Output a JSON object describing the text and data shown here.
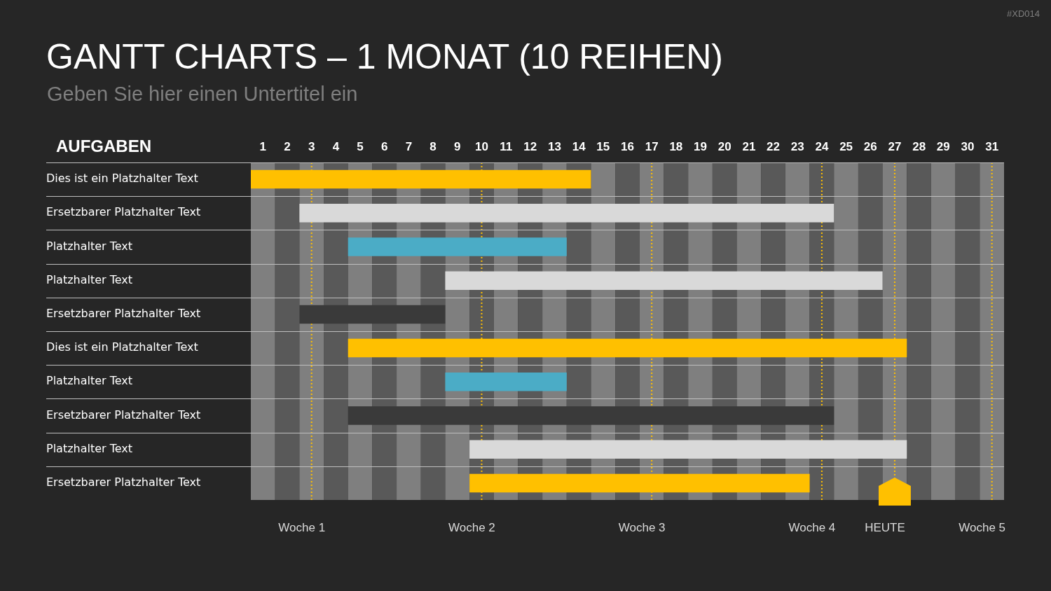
{
  "chart_data": {
    "type": "bar",
    "orientation": "horizontal",
    "title": "GANTT CHARTS – 1 MONAT (10 REIHEN)",
    "subtitle": "Geben Sie hier einen Untertitel ein",
    "ylabel": "AUFGABEN",
    "categories": [
      "Dies ist ein Platzhalter Text",
      "Ersetzbarer Platzhalter Text",
      "Platzhalter Text",
      "Platzhalter Text",
      "Ersetzbarer Platzhalter Text",
      "Dies ist ein Platzhalter Text",
      "Platzhalter Text",
      "Ersetzbarer Platzhalter Text",
      "Platzhalter Text",
      "Ersetzbarer Platzhalter Text"
    ],
    "base": [
      0.5,
      2.5,
      4.5,
      8.5,
      2.5,
      4.5,
      8.5,
      4.5,
      9.5,
      9.5
    ],
    "values": [
      14,
      22,
      9,
      18,
      6,
      23,
      5,
      20,
      18,
      14
    ],
    "colors": [
      "#ffc000",
      "#d9d9d9",
      "#4bacc6",
      "#d9d9d9",
      "#3a3a3a",
      "#ffc000",
      "#4bacc6",
      "#3a3a3a",
      "#d9d9d9",
      "#ffc000"
    ],
    "xlim": [
      0.5,
      31.5
    ],
    "xticks": [
      1,
      2,
      3,
      4,
      5,
      6,
      7,
      8,
      9,
      10,
      11,
      12,
      13,
      14,
      15,
      16,
      17,
      18,
      19,
      20,
      21,
      22,
      23,
      24,
      25,
      26,
      27,
      28,
      29,
      30,
      31
    ],
    "grid": "y",
    "bands": [
      {
        "axis": "x",
        "from": 0.5,
        "to": 1.5,
        "color": "#7f7f7f"
      },
      {
        "axis": "x",
        "from": 1.5,
        "to": 2.5,
        "color": "#595959"
      },
      {
        "axis": "x",
        "from": 2.5,
        "to": 3.5,
        "color": "#7f7f7f"
      },
      {
        "axis": "x",
        "from": 3.5,
        "to": 4.5,
        "color": "#595959"
      },
      {
        "axis": "x",
        "from": 4.5,
        "to": 5.5,
        "color": "#7f7f7f"
      },
      {
        "axis": "x",
        "from": 5.5,
        "to": 6.5,
        "color": "#595959"
      },
      {
        "axis": "x",
        "from": 6.5,
        "to": 7.5,
        "color": "#7f7f7f"
      },
      {
        "axis": "x",
        "from": 7.5,
        "to": 8.5,
        "color": "#595959"
      },
      {
        "axis": "x",
        "from": 8.5,
        "to": 9.5,
        "color": "#7f7f7f"
      },
      {
        "axis": "x",
        "from": 9.5,
        "to": 10.5,
        "color": "#595959"
      },
      {
        "axis": "x",
        "from": 10.5,
        "to": 11.5,
        "color": "#7f7f7f"
      },
      {
        "axis": "x",
        "from": 11.5,
        "to": 12.5,
        "color": "#595959"
      },
      {
        "axis": "x",
        "from": 12.5,
        "to": 13.5,
        "color": "#7f7f7f"
      },
      {
        "axis": "x",
        "from": 13.5,
        "to": 14.5,
        "color": "#595959"
      },
      {
        "axis": "x",
        "from": 14.5,
        "to": 15.5,
        "color": "#7f7f7f"
      },
      {
        "axis": "x",
        "from": 15.5,
        "to": 16.5,
        "color": "#595959"
      },
      {
        "axis": "x",
        "from": 16.5,
        "to": 17.5,
        "color": "#7f7f7f"
      },
      {
        "axis": "x",
        "from": 17.5,
        "to": 18.5,
        "color": "#595959"
      },
      {
        "axis": "x",
        "from": 18.5,
        "to": 19.5,
        "color": "#7f7f7f"
      },
      {
        "axis": "x",
        "from": 19.5,
        "to": 20.5,
        "color": "#595959"
      },
      {
        "axis": "x",
        "from": 20.5,
        "to": 21.5,
        "color": "#7f7f7f"
      },
      {
        "axis": "x",
        "from": 21.5,
        "to": 22.5,
        "color": "#595959"
      },
      {
        "axis": "x",
        "from": 22.5,
        "to": 23.5,
        "color": "#7f7f7f"
      },
      {
        "axis": "x",
        "from": 23.5,
        "to": 24.5,
        "color": "#595959"
      },
      {
        "axis": "x",
        "from": 24.5,
        "to": 25.5,
        "color": "#7f7f7f"
      },
      {
        "axis": "x",
        "from": 25.5,
        "to": 26.5,
        "color": "#595959"
      },
      {
        "axis": "x",
        "from": 26.5,
        "to": 27.5,
        "color": "#7f7f7f"
      },
      {
        "axis": "x",
        "from": 27.5,
        "to": 28.5,
        "color": "#595959"
      },
      {
        "axis": "x",
        "from": 28.5,
        "to": 29.5,
        "color": "#7f7f7f"
      },
      {
        "axis": "x",
        "from": 29.5,
        "to": 30.5,
        "color": "#595959"
      },
      {
        "axis": "x",
        "from": 30.5,
        "to": 31.5,
        "color": "#7f7f7f"
      }
    ],
    "ref_lines": [
      {
        "axis": "x",
        "value": 3,
        "label": "Woche 1",
        "color": "#ffc000",
        "line_style": "dotted"
      },
      {
        "axis": "x",
        "value": 10,
        "label": "Woche 2",
        "color": "#ffc000",
        "line_style": "dotted"
      },
      {
        "axis": "x",
        "value": 17,
        "label": "Woche 3",
        "color": "#ffc000",
        "line_style": "dotted"
      },
      {
        "axis": "x",
        "value": 24,
        "label": "Woche 4",
        "color": "#ffc000",
        "line_style": "dotted"
      },
      {
        "axis": "x",
        "value": 27,
        "label": "HEUTE",
        "color": "#ffc000",
        "line_style": "dotted"
      },
      {
        "axis": "x",
        "value": 31,
        "label": "Woche 5",
        "color": "#ffc000",
        "line_style": "dotted"
      }
    ],
    "annotations": [
      "#XD014"
    ]
  }
}
